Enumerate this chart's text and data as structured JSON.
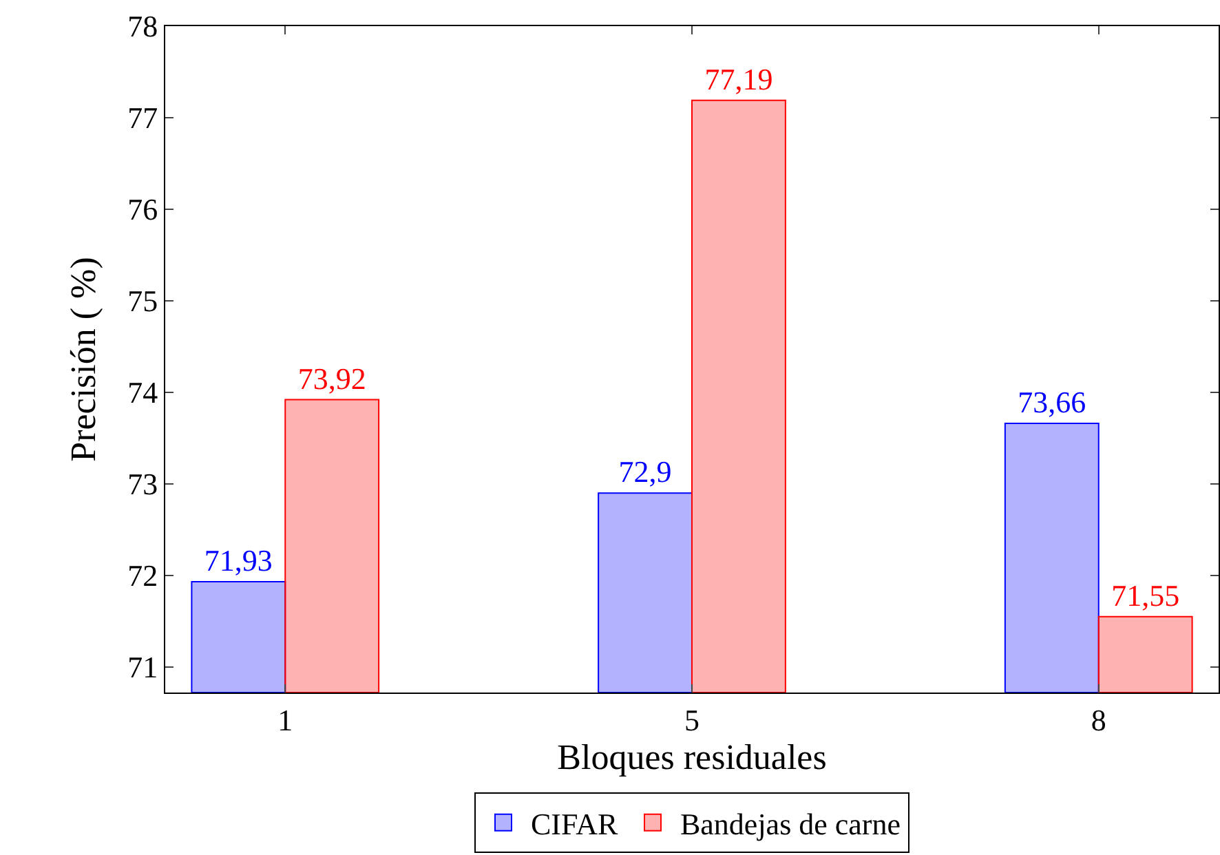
{
  "chart_data": {
    "type": "bar",
    "xlabel": "Bloques residuales",
    "ylabel": "Precisión ( %)",
    "categories": [
      "1",
      "5",
      "8"
    ],
    "series": [
      {
        "name": "CIFAR",
        "color": "#0000ff",
        "values": [
          71.93,
          72.9,
          73.66
        ],
        "value_labels": [
          "71,93",
          "72,9",
          "73,66"
        ]
      },
      {
        "name": "Bandejas de carne",
        "color": "#ff0000",
        "values": [
          73.92,
          77.19,
          71.55
        ],
        "value_labels": [
          "73,92",
          "77,19",
          "71,55"
        ]
      }
    ],
    "ylim": [
      70.72,
      78
    ],
    "yticks": [
      71,
      72,
      73,
      74,
      75,
      76,
      77,
      78
    ],
    "legend": "bottom"
  }
}
